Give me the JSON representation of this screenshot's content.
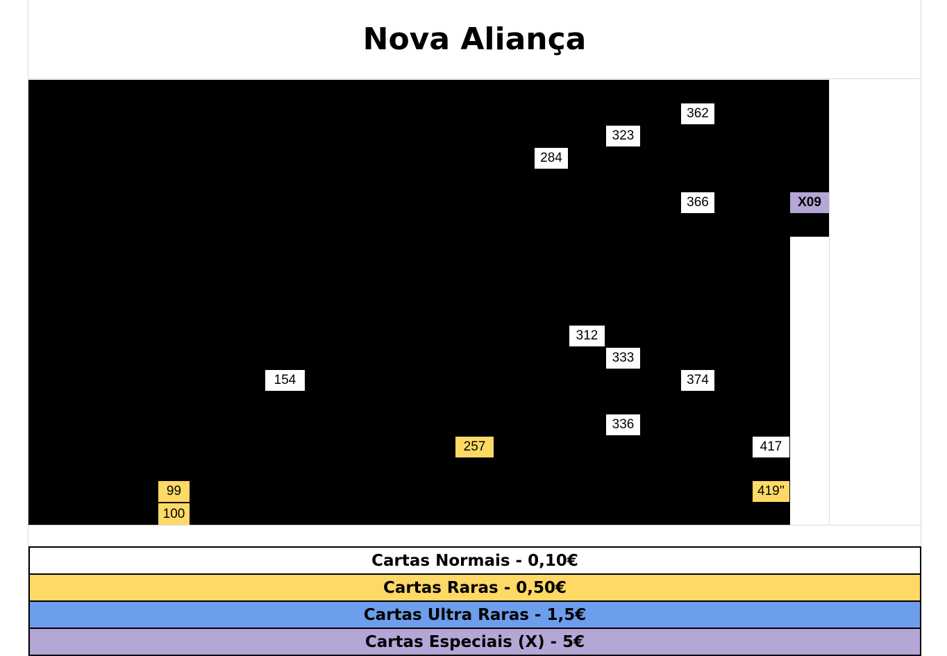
{
  "title": "Nova Aliança",
  "cards": [
    {
      "label": "362",
      "rarity": "normal"
    },
    {
      "label": "323",
      "rarity": "normal"
    },
    {
      "label": "284",
      "rarity": "normal"
    },
    {
      "label": "366",
      "rarity": "normal"
    },
    {
      "label": "X09",
      "rarity": "special"
    },
    {
      "label": "312",
      "rarity": "normal"
    },
    {
      "label": "333",
      "rarity": "normal"
    },
    {
      "label": "154",
      "rarity": "normal"
    },
    {
      "label": "374",
      "rarity": "normal"
    },
    {
      "label": "336",
      "rarity": "normal"
    },
    {
      "label": "257",
      "rarity": "rare"
    },
    {
      "label": "417",
      "rarity": "normal"
    },
    {
      "label": "99",
      "rarity": "rare"
    },
    {
      "label": "419''",
      "rarity": "rare"
    },
    {
      "label": "100",
      "rarity": "rare"
    }
  ],
  "legend": [
    {
      "label": "Cartas Normais - 0,10€",
      "color": "#ffffff"
    },
    {
      "label": "Cartas Raras - 0,50€",
      "color": "#ffd966"
    },
    {
      "label": "Cartas Ultra Raras - 1,5€",
      "color": "#6d9eeb"
    },
    {
      "label": "Cartas Especiais (X) - 5€",
      "color": "#b4a7d6"
    }
  ]
}
